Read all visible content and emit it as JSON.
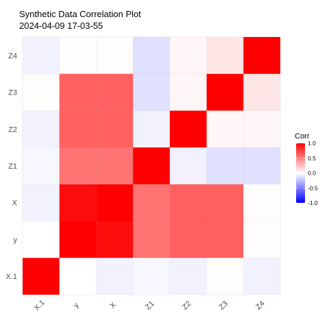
{
  "chart_data": {
    "type": "heatmap",
    "title": "Synthetic Data Correlation Plot",
    "subtitle": "2024-04-09 17-03-55",
    "x_categories": [
      "X.1",
      "y",
      "X",
      "Z1",
      "Z2",
      "Z3",
      "Z4"
    ],
    "y_categories": [
      "X.1",
      "y",
      "X",
      "Z1",
      "Z2",
      "Z3",
      "Z4"
    ],
    "matrix": [
      [
        1.0,
        0.0,
        -0.05,
        -0.03,
        -0.05,
        0.01,
        -0.05
      ],
      [
        0.0,
        1.0,
        0.95,
        0.55,
        0.62,
        0.62,
        0.01
      ],
      [
        -0.05,
        0.95,
        1.0,
        0.55,
        0.62,
        0.62,
        0.01
      ],
      [
        -0.03,
        0.55,
        0.55,
        1.0,
        -0.05,
        -0.12,
        -0.12
      ],
      [
        -0.05,
        0.62,
        0.62,
        -0.05,
        1.0,
        0.03,
        0.03
      ],
      [
        0.01,
        0.62,
        0.62,
        -0.12,
        0.03,
        1.0,
        0.1
      ],
      [
        -0.05,
        0.01,
        0.01,
        -0.12,
        0.03,
        0.1,
        1.0
      ]
    ],
    "scale": {
      "title": "Corr",
      "min": -1.0,
      "max": 1.0,
      "ticks": [
        "1.0",
        "0.5",
        "0.0",
        "-0.5",
        "-1.0"
      ],
      "tick_values": [
        1.0,
        0.5,
        0.0,
        -0.5,
        -1.0
      ],
      "colors": {
        "low": "#0000ff",
        "mid": "#ffffff",
        "high": "#ff0000"
      }
    },
    "legend_placement": "right",
    "grid": true,
    "x_tick_rotation": "45deg"
  }
}
